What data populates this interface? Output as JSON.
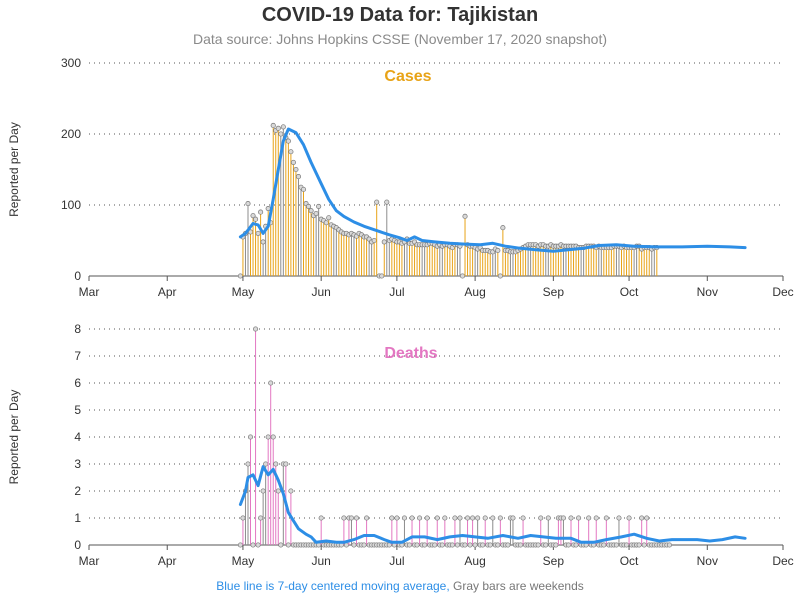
{
  "header": {
    "title": "COVID-19 Data for: Tajikistan",
    "subtitle": "Data source: Johns Hopkins CSSE (November 17, 2020 snapshot)"
  },
  "footer": {
    "blue_text": "Blue line is 7-day centered moving average,",
    "gray_text": "Gray bars are weekends"
  },
  "colors": {
    "cases": "#e8a317",
    "deaths": "#e377c2",
    "weekend": "#8c8c8c",
    "moving_average": "#2d8ee6",
    "grid": "#555555"
  },
  "chart_data": [
    {
      "type": "bar",
      "panel_label": "Cases",
      "ylabel": "Reported per Day",
      "ylim": [
        0,
        300
      ],
      "yticks": [
        0,
        100,
        200,
        300
      ],
      "grid": "horizontal dotted",
      "x_domain": [
        "2020-03-01",
        "2020-12-01"
      ],
      "xticks": [
        {
          "date": "2020-03-01",
          "label": "Mar"
        },
        {
          "date": "2020-04-01",
          "label": "Apr"
        },
        {
          "date": "2020-05-01",
          "label": "May"
        },
        {
          "date": "2020-06-01",
          "label": "Jun"
        },
        {
          "date": "2020-07-01",
          "label": "Jul"
        },
        {
          "date": "2020-08-01",
          "label": "Aug"
        },
        {
          "date": "2020-09-01",
          "label": "Sep"
        },
        {
          "date": "2020-10-01",
          "label": "Oct"
        },
        {
          "date": "2020-11-01",
          "label": "Nov"
        },
        {
          "date": "2020-12-01",
          "label": "Dec"
        }
      ],
      "daily_start": "2020-04-30",
      "daily_values": [
        0,
        55,
        60,
        102,
        62,
        85,
        80,
        60,
        90,
        48,
        70,
        95,
        75,
        212,
        205,
        208,
        200,
        210,
        195,
        190,
        175,
        160,
        150,
        140,
        125,
        122,
        102,
        98,
        92,
        85,
        88,
        98,
        80,
        78,
        75,
        82,
        72,
        70,
        68,
        65,
        62,
        60,
        60,
        58,
        60,
        58,
        56,
        60,
        58,
        55,
        55,
        52,
        48,
        50,
        104,
        0,
        0,
        48,
        104,
        50,
        52,
        50,
        48,
        48,
        46,
        48,
        52,
        46,
        46,
        48,
        44,
        44,
        44,
        44,
        44,
        46,
        46,
        44,
        42,
        44,
        42,
        44,
        44,
        42,
        40,
        44,
        44,
        42,
        0,
        84,
        44,
        42,
        42,
        40,
        38,
        40,
        36,
        36,
        36,
        34,
        34,
        38,
        36,
        0,
        68,
        36,
        36,
        34,
        34,
        34,
        36,
        38,
        40,
        42,
        44,
        44,
        44,
        44,
        42,
        44,
        44,
        42,
        42,
        44,
        42,
        42,
        42,
        44,
        42,
        42,
        42,
        42,
        42,
        42,
        40,
        40,
        40,
        42,
        42,
        42,
        42,
        40,
        42,
        40,
        40,
        40,
        40,
        40,
        42,
        42,
        42,
        40,
        42,
        40,
        40,
        40,
        40,
        42,
        42,
        38,
        40,
        40,
        40,
        38,
        40,
        40
      ],
      "moving_average": [
        [
          "2020-04-30",
          55
        ],
        [
          "2020-05-02",
          60
        ],
        [
          "2020-05-05",
          74
        ],
        [
          "2020-05-07",
          72
        ],
        [
          "2020-05-09",
          60
        ],
        [
          "2020-05-11",
          70
        ],
        [
          "2020-05-13",
          108
        ],
        [
          "2020-05-15",
          150
        ],
        [
          "2020-05-17",
          190
        ],
        [
          "2020-05-19",
          207
        ],
        [
          "2020-05-22",
          202
        ],
        [
          "2020-05-25",
          185
        ],
        [
          "2020-05-28",
          160
        ],
        [
          "2020-06-01",
          130
        ],
        [
          "2020-06-04",
          108
        ],
        [
          "2020-06-07",
          92
        ],
        [
          "2020-06-10",
          84
        ],
        [
          "2020-06-14",
          76
        ],
        [
          "2020-06-18",
          70
        ],
        [
          "2020-06-23",
          64
        ],
        [
          "2020-06-28",
          58
        ],
        [
          "2020-07-02",
          54
        ],
        [
          "2020-07-05",
          50
        ],
        [
          "2020-07-08",
          55
        ],
        [
          "2020-07-11",
          50
        ],
        [
          "2020-07-16",
          48
        ],
        [
          "2020-07-22",
          46
        ],
        [
          "2020-07-28",
          45
        ],
        [
          "2020-08-03",
          44
        ],
        [
          "2020-08-08",
          46
        ],
        [
          "2020-08-13",
          42
        ],
        [
          "2020-08-19",
          39
        ],
        [
          "2020-08-25",
          37
        ],
        [
          "2020-09-01",
          35
        ],
        [
          "2020-09-07",
          37
        ],
        [
          "2020-09-13",
          39
        ],
        [
          "2020-09-19",
          43
        ],
        [
          "2020-09-26",
          44
        ],
        [
          "2020-10-03",
          42
        ],
        [
          "2020-10-12",
          41
        ],
        [
          "2020-10-22",
          41
        ],
        [
          "2020-11-01",
          42
        ],
        [
          "2020-11-10",
          41
        ],
        [
          "2020-11-16",
          40
        ]
      ]
    },
    {
      "type": "bar",
      "panel_label": "Deaths",
      "ylabel": "Reported per Day",
      "ylim": [
        0,
        8
      ],
      "yticks": [
        0,
        1,
        2,
        3,
        4,
        5,
        6,
        7,
        8
      ],
      "grid": "horizontal dotted",
      "x_domain": [
        "2020-03-01",
        "2020-12-01"
      ],
      "xticks": [
        {
          "date": "2020-03-01",
          "label": "Mar"
        },
        {
          "date": "2020-04-01",
          "label": "Apr"
        },
        {
          "date": "2020-05-01",
          "label": "May"
        },
        {
          "date": "2020-06-01",
          "label": "Jun"
        },
        {
          "date": "2020-07-01",
          "label": "Jul"
        },
        {
          "date": "2020-08-01",
          "label": "Aug"
        },
        {
          "date": "2020-09-01",
          "label": "Sep"
        },
        {
          "date": "2020-10-01",
          "label": "Oct"
        },
        {
          "date": "2020-11-01",
          "label": "Nov"
        },
        {
          "date": "2020-12-01",
          "label": "Dec"
        }
      ],
      "daily_start": "2020-04-30",
      "daily_values": [
        0,
        1,
        2,
        3,
        4,
        0,
        8,
        0,
        1,
        2,
        3,
        4,
        6,
        4,
        3,
        2,
        0,
        3,
        3,
        0,
        2,
        0,
        0,
        0,
        0,
        0,
        0,
        0,
        0,
        0,
        0,
        0,
        1,
        0,
        0,
        0,
        0,
        0,
        0,
        0,
        0,
        1,
        0,
        1,
        1,
        0,
        1,
        0,
        0,
        0,
        1,
        0,
        0,
        0,
        0,
        0,
        0,
        0,
        0,
        0,
        1,
        0,
        1,
        0,
        0,
        1,
        0,
        0,
        1,
        0,
        0,
        1,
        0,
        0,
        1,
        0,
        0,
        0,
        1,
        0,
        0,
        1,
        0,
        0,
        0,
        1,
        0,
        1,
        0,
        0,
        1,
        0,
        1,
        0,
        1,
        0,
        0,
        1,
        0,
        0,
        1,
        0,
        0,
        1,
        0,
        0,
        0,
        1,
        1,
        0,
        0,
        0,
        1,
        0,
        0,
        0,
        0,
        0,
        0,
        1,
        0,
        0,
        1,
        0,
        0,
        0,
        1,
        1,
        1,
        0,
        0,
        1,
        0,
        0,
        1,
        0,
        0,
        0,
        1,
        0,
        0,
        1,
        0,
        0,
        0,
        1,
        0,
        0,
        0,
        0,
        1,
        0,
        0,
        0,
        1,
        0,
        0,
        0,
        0,
        1,
        0,
        1,
        0,
        0,
        0,
        0,
        0,
        0,
        0,
        0,
        0
      ],
      "moving_average": [
        [
          "2020-04-30",
          1.5
        ],
        [
          "2020-05-02",
          2.0
        ],
        [
          "2020-05-03",
          2.5
        ],
        [
          "2020-05-05",
          2.6
        ],
        [
          "2020-05-07",
          2.2
        ],
        [
          "2020-05-09",
          2.9
        ],
        [
          "2020-05-11",
          2.6
        ],
        [
          "2020-05-13",
          2.8
        ],
        [
          "2020-05-15",
          2.4
        ],
        [
          "2020-05-17",
          1.9
        ],
        [
          "2020-05-19",
          1.2
        ],
        [
          "2020-05-21",
          0.9
        ],
        [
          "2020-05-23",
          0.6
        ],
        [
          "2020-05-26",
          0.4
        ],
        [
          "2020-05-28",
          0.3
        ],
        [
          "2020-05-30",
          0.1
        ],
        [
          "2020-06-03",
          0.15
        ],
        [
          "2020-06-07",
          0.1
        ],
        [
          "2020-06-10",
          0.1
        ],
        [
          "2020-06-14",
          0.2
        ],
        [
          "2020-06-18",
          0.35
        ],
        [
          "2020-06-22",
          0.35
        ],
        [
          "2020-06-26",
          0.2
        ],
        [
          "2020-06-29",
          0.1
        ],
        [
          "2020-07-03",
          0.1
        ],
        [
          "2020-07-07",
          0.3
        ],
        [
          "2020-07-12",
          0.3
        ],
        [
          "2020-07-17",
          0.2
        ],
        [
          "2020-07-22",
          0.3
        ],
        [
          "2020-07-27",
          0.35
        ],
        [
          "2020-08-01",
          0.3
        ],
        [
          "2020-08-06",
          0.25
        ],
        [
          "2020-08-12",
          0.35
        ],
        [
          "2020-08-18",
          0.25
        ],
        [
          "2020-08-23",
          0.35
        ],
        [
          "2020-08-28",
          0.3
        ],
        [
          "2020-09-02",
          0.25
        ],
        [
          "2020-09-08",
          0.25
        ],
        [
          "2020-09-12",
          0.1
        ],
        [
          "2020-09-17",
          0.1
        ],
        [
          "2020-09-22",
          0.2
        ],
        [
          "2020-09-28",
          0.3
        ],
        [
          "2020-10-03",
          0.4
        ],
        [
          "2020-10-08",
          0.25
        ],
        [
          "2020-10-13",
          0.15
        ],
        [
          "2020-10-18",
          0.2
        ],
        [
          "2020-10-23",
          0.2
        ],
        [
          "2020-10-28",
          0.2
        ],
        [
          "2020-11-02",
          0.15
        ],
        [
          "2020-11-07",
          0.2
        ],
        [
          "2020-11-12",
          0.3
        ],
        [
          "2020-11-16",
          0.25
        ]
      ]
    }
  ]
}
